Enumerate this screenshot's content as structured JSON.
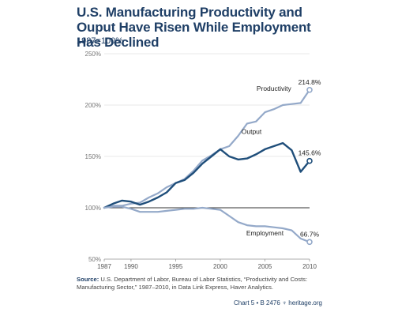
{
  "chart_data": {
    "type": "line",
    "title": "U.S. Manufacturing Productivity and Ouput Have Risen While Employment Has Declined",
    "subtitle": "1987=100%",
    "xlim": [
      1987,
      2010
    ],
    "ylim": [
      50,
      250
    ],
    "x_ticks": [
      1987,
      1990,
      1995,
      2000,
      2005,
      2010
    ],
    "y_ticks": [
      50,
      100,
      150,
      200,
      250
    ],
    "y_tick_labels": [
      "50%",
      "100%",
      "150%",
      "200%",
      "250%"
    ],
    "baseline": 100,
    "series": [
      {
        "name": "Productivity",
        "color": "#94a9c9",
        "end_label": "214.8%",
        "x": [
          1987,
          1988,
          1989,
          1990,
          1991,
          1992,
          1993,
          1994,
          1995,
          1996,
          1997,
          1998,
          1999,
          2000,
          2001,
          2002,
          2003,
          2004,
          2005,
          2006,
          2007,
          2008,
          2009,
          2010
        ],
        "y": [
          100,
          102,
          102,
          104,
          105,
          110,
          114,
          120,
          124,
          128,
          136,
          146,
          151,
          157,
          160,
          170,
          182,
          184,
          193,
          196,
          200,
          201,
          202,
          214.8
        ]
      },
      {
        "name": "Output",
        "color": "#1f4e7a",
        "end_label": "145.6%",
        "x": [
          1987,
          1988,
          1989,
          1990,
          1991,
          1992,
          1993,
          1994,
          1995,
          1996,
          1997,
          1998,
          1999,
          2000,
          2001,
          2002,
          2003,
          2004,
          2005,
          2006,
          2007,
          2008,
          2009,
          2010
        ],
        "y": [
          100,
          104,
          107,
          106,
          103,
          106,
          110,
          115,
          124,
          127,
          134,
          143,
          150,
          157,
          150,
          147,
          148,
          152,
          157,
          160,
          163,
          156,
          135,
          145.6
        ]
      },
      {
        "name": "Employment",
        "color": "#94a9c9",
        "end_label": "66.7%",
        "x": [
          1987,
          1988,
          1989,
          1990,
          1991,
          1992,
          1993,
          1994,
          1995,
          1996,
          1997,
          1998,
          1999,
          2000,
          2001,
          2002,
          2003,
          2004,
          2005,
          2006,
          2007,
          2008,
          2009,
          2010
        ],
        "y": [
          100,
          101,
          101,
          99,
          96,
          96,
          96,
          97,
          98,
          99,
          99,
          100,
          99,
          98,
          92,
          86,
          83,
          82,
          82,
          81,
          80,
          78,
          70,
          66.7
        ]
      }
    ]
  },
  "source": {
    "label": "Source:",
    "text": "U.S. Department of Labor, Bureau of Labor Statistics, “Productivity and Costs: Manufacturing Sector,” 1987–2010, in Data Link Express, Haver Analytics."
  },
  "footer": {
    "chart_id": "Chart 5 • B 2476",
    "brand": "heritage.org"
  }
}
